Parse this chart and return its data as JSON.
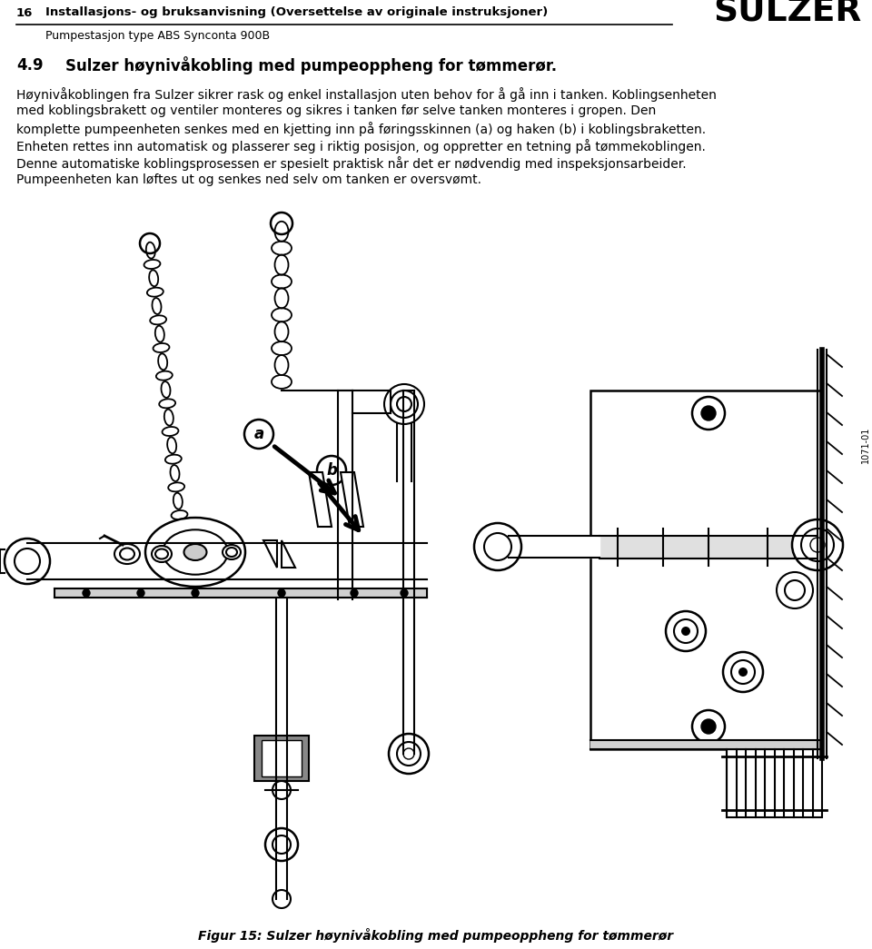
{
  "page_number": "16",
  "header_line1": "Installasjons- og bruksanvisning (Oversettelse av originale instruksjoner)",
  "header_line2": "Pumpestasjon type ABS Synconta 900B",
  "brand": "SULZER",
  "section_number": "4.9",
  "section_title": "Sulzer høynivåkobling med pumpeoppheng for tømmerør.",
  "body_text": [
    "Høynivåkoblingen fra Sulzer sikrer rask og enkel installasjon uten behov for å gå inn i tanken. Koblingsenheten",
    "med koblingsbrakett og ventiler monteres og sikres i tanken før selve tanken monteres i gropen. Den",
    "komplette pumpeenheten senkes med en kjetting inn på føringsskinnen (a) og haken (b) i koblingsbraketten.",
    "Enheten rettes inn automatisk og plasserer seg i riktig posisjon, og oppretter en tetning på tømmekoblingen.",
    "Denne automatiske koblingsprosessen er spesielt praktisk når det er nødvendig med inspeksjonsarbeider.",
    "Pumpeenheten kan løftes ut og senkes ned selv om tanken er oversvømt."
  ],
  "figure_caption": "Figur 15: Sulzer høynivåkobling med pumpeoppheng for tømmerør",
  "vertical_text": "1071-01",
  "background_color": "#ffffff",
  "text_color": "#000000"
}
